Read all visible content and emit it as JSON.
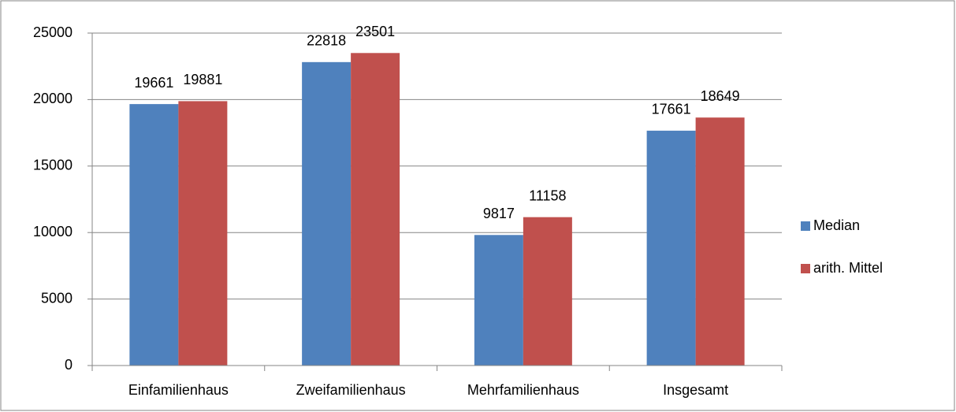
{
  "chart_data": {
    "type": "bar",
    "categories": [
      "Einfamilienhaus",
      "Zweifamilienhaus",
      "Mehrfamilienhaus",
      "Insgesamt"
    ],
    "series": [
      {
        "name": "Median",
        "color": "#4f81bd",
        "values": [
          19661,
          22818,
          9817,
          17661
        ]
      },
      {
        "name": "arith. Mittel",
        "color": "#c0504d",
        "values": [
          19881,
          23501,
          11158,
          18649
        ]
      }
    ],
    "ylim": [
      0,
      25000
    ],
    "yticks": [
      0,
      5000,
      10000,
      15000,
      20000,
      25000
    ],
    "grid": true,
    "legend": "right"
  }
}
